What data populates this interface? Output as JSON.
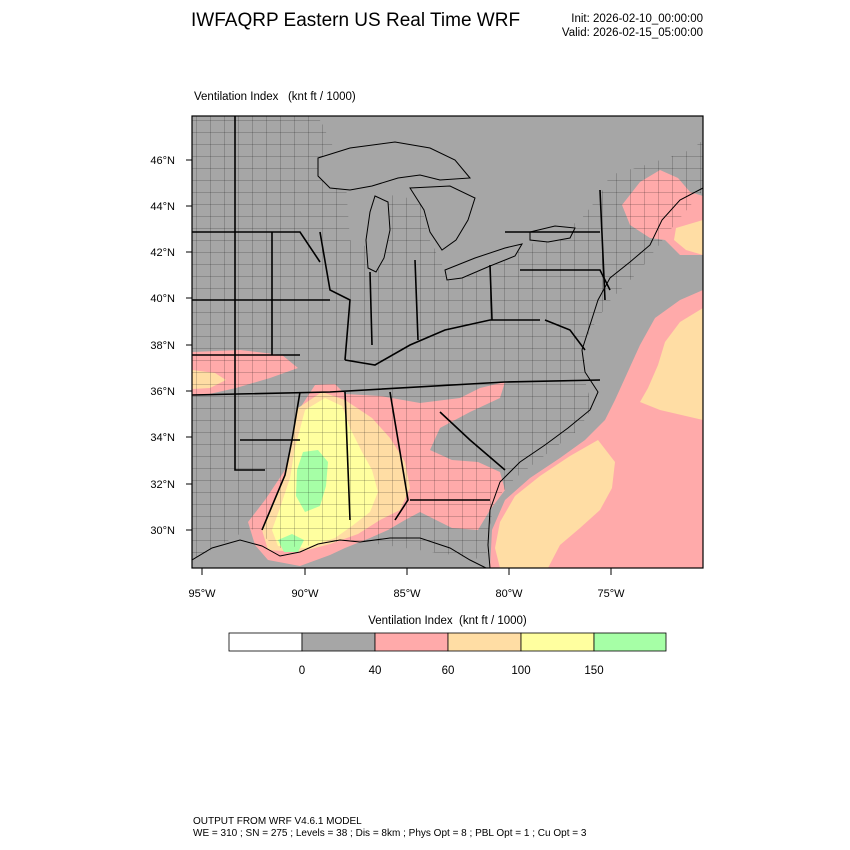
{
  "header": {
    "title": "IWFAQRP Eastern US Real Time WRF",
    "init": "Init: 2026-02-10_00:00:00",
    "valid": "Valid: 2026-02-15_05:00:00"
  },
  "map": {
    "field_title": "Ventilation Index   (knt ft / 1000)",
    "lat_labels": [
      "46°N",
      "44°N",
      "42°N",
      "40°N",
      "38°N",
      "36°N",
      "34°N",
      "32°N",
      "30°N"
    ],
    "lon_labels": [
      "95°W",
      "90°W",
      "85°W",
      "80°W",
      "75°W"
    ],
    "colors": {
      "land_low": "#a6a6a6",
      "class_40_60": "#ffaaaa",
      "class_60_100": "#ffdda4",
      "class_100_150": "#ffff9f",
      "class_150_plus": "#a6ffa6"
    }
  },
  "colorbar": {
    "title": "Ventilation Index  (knt ft / 1000)",
    "boxes": [
      {
        "color": "#ffffff"
      },
      {
        "color": "#a6a6a6"
      },
      {
        "color": "#ffaaaa"
      },
      {
        "color": "#ffdda4"
      },
      {
        "color": "#ffff9f"
      },
      {
        "color": "#a6ffa6"
      }
    ],
    "tick_labels": [
      "0",
      "40",
      "60",
      "100",
      "150"
    ]
  },
  "footer": {
    "line1": "OUTPUT FROM WRF V4.6.1 MODEL",
    "line2": "WE = 310 ; SN = 275 ; Levels = 38 ; Dis = 8km ; Phys Opt = 8 ; PBL Opt = 1 ; Cu Opt = 3"
  }
}
